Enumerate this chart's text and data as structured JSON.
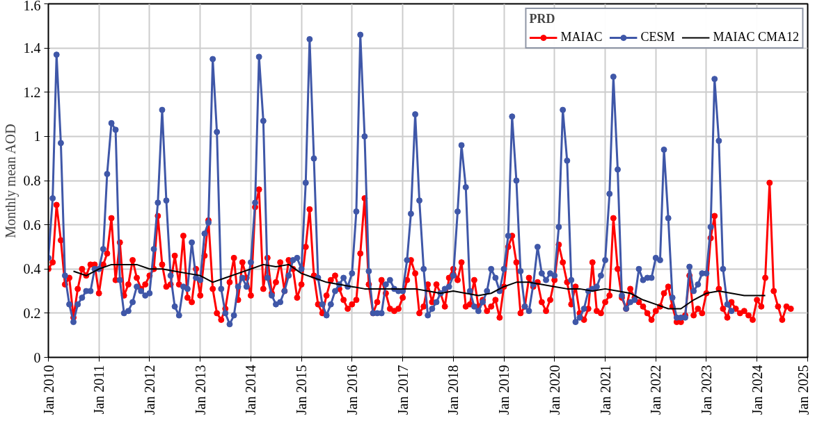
{
  "chart_data": {
    "type": "line",
    "ylabel": "Monthly mean AOD",
    "legend_title": "PRD",
    "legend": "top right",
    "grid": true,
    "line_style": "solid",
    "xlim": [
      "2010-01",
      "2025-01"
    ],
    "xticks": [
      {
        "value": "2010-01",
        "label": "Jan 2010"
      },
      {
        "value": "2011-01",
        "label": "Jan 2011"
      },
      {
        "value": "2012-01",
        "label": "Jan 2012"
      },
      {
        "value": "2013-01",
        "label": "Jan 2013"
      },
      {
        "value": "2014-01",
        "label": "Jan 2014"
      },
      {
        "value": "2015-01",
        "label": "Jan 2015"
      },
      {
        "value": "2016-01",
        "label": "Jan 2016"
      },
      {
        "value": "2017-01",
        "label": "Jan 2017"
      },
      {
        "value": "2018-01",
        "label": "Jan 2018"
      },
      {
        "value": "2019-01",
        "label": "Jan 2019"
      },
      {
        "value": "2020-01",
        "label": "Jan 2020"
      },
      {
        "value": "2021-01",
        "label": "Jan 2021"
      },
      {
        "value": "2022-01",
        "label": "Jan 2022"
      },
      {
        "value": "2023-01",
        "label": "Jan 2023"
      },
      {
        "value": "2024-01",
        "label": "Jan 2024"
      },
      {
        "value": "2025-01",
        "label": "Jan 2025"
      }
    ],
    "ylim": [
      0,
      1.6
    ],
    "yticks": [
      0,
      0.2,
      0.4,
      0.6,
      0.8,
      1,
      1.2,
      1.4,
      1.6
    ],
    "series": [
      {
        "name": "MAIAC",
        "color": "#ff0000",
        "marker": "circle",
        "x": [
          "2010-01",
          "2010-02",
          "2010-03",
          "2010-04",
          "2010-05",
          "2010-06",
          "2010-07",
          "2010-08",
          "2010-09",
          "2010-10",
          "2010-11",
          "2010-12",
          "2011-01",
          "2011-02",
          "2011-03",
          "2011-04",
          "2011-05",
          "2011-06",
          "2011-07",
          "2011-08",
          "2011-09",
          "2011-10",
          "2011-11",
          "2011-12",
          "2012-01",
          "2012-02",
          "2012-03",
          "2012-04",
          "2012-05",
          "2012-06",
          "2012-07",
          "2012-08",
          "2012-09",
          "2012-10",
          "2012-11",
          "2012-12",
          "2013-01",
          "2013-02",
          "2013-03",
          "2013-04",
          "2013-05",
          "2013-06",
          "2013-07",
          "2013-08",
          "2013-09",
          "2013-10",
          "2013-11",
          "2013-12",
          "2014-01",
          "2014-02",
          "2014-03",
          "2014-04",
          "2014-05",
          "2014-06",
          "2014-07",
          "2014-08",
          "2014-09",
          "2014-10",
          "2014-11",
          "2014-12",
          "2015-01",
          "2015-02",
          "2015-03",
          "2015-04",
          "2015-05",
          "2015-06",
          "2015-07",
          "2015-08",
          "2015-09",
          "2015-10",
          "2015-11",
          "2015-12",
          "2016-01",
          "2016-02",
          "2016-03",
          "2016-04",
          "2016-05",
          "2016-06",
          "2016-07",
          "2016-08",
          "2016-09",
          "2016-10",
          "2016-11",
          "2016-12",
          "2017-01",
          "2017-02",
          "2017-03",
          "2017-04",
          "2017-05",
          "2017-06",
          "2017-07",
          "2017-08",
          "2017-09",
          "2017-10",
          "2017-11",
          "2017-12",
          "2018-01",
          "2018-02",
          "2018-03",
          "2018-04",
          "2018-05",
          "2018-06",
          "2018-07",
          "2018-08",
          "2018-09",
          "2018-10",
          "2018-11",
          "2018-12",
          "2019-01",
          "2019-02",
          "2019-03",
          "2019-04",
          "2019-05",
          "2019-06",
          "2019-07",
          "2019-08",
          "2019-09",
          "2019-10",
          "2019-11",
          "2019-12",
          "2020-01",
          "2020-02",
          "2020-03",
          "2020-04",
          "2020-05",
          "2020-06",
          "2020-07",
          "2020-08",
          "2020-09",
          "2020-10",
          "2020-11",
          "2020-12",
          "2021-01",
          "2021-02",
          "2021-03",
          "2021-04",
          "2021-05",
          "2021-06",
          "2021-07",
          "2021-08",
          "2021-09",
          "2021-10",
          "2021-11",
          "2021-12",
          "2022-01",
          "2022-02",
          "2022-03",
          "2022-04",
          "2022-05",
          "2022-06",
          "2022-07",
          "2022-08",
          "2022-09",
          "2022-10",
          "2022-11",
          "2022-12",
          "2023-01",
          "2023-02",
          "2023-03",
          "2023-04",
          "2023-05",
          "2023-06",
          "2023-07",
          "2023-08",
          "2023-09",
          "2023-10",
          "2023-11",
          "2023-12",
          "2024-01",
          "2024-02",
          "2024-03",
          "2024-04",
          "2024-05",
          "2024-06",
          "2024-07",
          "2024-08",
          "2024-09"
        ],
        "values": [
          0.4,
          0.43,
          0.69,
          0.53,
          0.33,
          0.36,
          0.18,
          0.31,
          0.4,
          0.37,
          0.42,
          0.42,
          0.29,
          0.42,
          0.47,
          0.63,
          0.35,
          0.52,
          0.28,
          0.33,
          0.44,
          0.36,
          0.31,
          0.33,
          0.37,
          0.4,
          0.64,
          0.42,
          0.32,
          0.33,
          0.46,
          0.33,
          0.55,
          0.27,
          0.25,
          0.4,
          0.28,
          0.46,
          0.62,
          0.31,
          0.2,
          0.17,
          0.22,
          0.34,
          0.45,
          0.26,
          0.43,
          0.36,
          0.28,
          0.68,
          0.76,
          0.31,
          0.45,
          0.29,
          0.34,
          0.43,
          0.3,
          0.44,
          0.4,
          0.27,
          0.33,
          0.5,
          0.67,
          0.37,
          0.24,
          0.2,
          0.28,
          0.35,
          0.37,
          0.31,
          0.26,
          0.22,
          0.24,
          0.26,
          0.47,
          0.72,
          0.33,
          0.2,
          0.25,
          0.35,
          0.29,
          0.22,
          0.21,
          0.22,
          0.27,
          0.35,
          0.44,
          0.38,
          0.2,
          0.23,
          0.33,
          0.25,
          0.33,
          0.29,
          0.23,
          0.36,
          0.4,
          0.35,
          0.43,
          0.23,
          0.24,
          0.35,
          0.23,
          0.26,
          0.21,
          0.23,
          0.26,
          0.18,
          0.32,
          0.5,
          0.55,
          0.43,
          0.2,
          0.23,
          0.36,
          0.32,
          0.34,
          0.25,
          0.21,
          0.26,
          0.35,
          0.51,
          0.43,
          0.34,
          0.24,
          0.32,
          0.2,
          0.17,
          0.22,
          0.43,
          0.21,
          0.2,
          0.25,
          0.28,
          0.63,
          0.4,
          0.27,
          0.22,
          0.31,
          0.27,
          0.25,
          0.23,
          0.2,
          0.17,
          0.21,
          0.23,
          0.29,
          0.32,
          0.23,
          0.16,
          0.16,
          0.19,
          0.37,
          0.19,
          0.22,
          0.2,
          0.29,
          0.54,
          0.64,
          0.31,
          0.22,
          0.18,
          0.25,
          0.22,
          0.2,
          0.21,
          0.19,
          0.17,
          0.26,
          0.23,
          0.36,
          0.79,
          0.3,
          0.23,
          0.17,
          0.23,
          0.22
        ]
      },
      {
        "name": "CESM",
        "color": "#3f57a8",
        "marker": "circle",
        "x": [
          "2010-01",
          "2010-02",
          "2010-03",
          "2010-04",
          "2010-05",
          "2010-06",
          "2010-07",
          "2010-08",
          "2010-09",
          "2010-10",
          "2010-11",
          "2010-12",
          "2011-01",
          "2011-02",
          "2011-03",
          "2011-04",
          "2011-05",
          "2011-06",
          "2011-07",
          "2011-08",
          "2011-09",
          "2011-10",
          "2011-11",
          "2011-12",
          "2012-01",
          "2012-02",
          "2012-03",
          "2012-04",
          "2012-05",
          "2012-06",
          "2012-07",
          "2012-08",
          "2012-09",
          "2012-10",
          "2012-11",
          "2012-12",
          "2013-01",
          "2013-02",
          "2013-03",
          "2013-04",
          "2013-05",
          "2013-06",
          "2013-07",
          "2013-08",
          "2013-09",
          "2013-10",
          "2013-11",
          "2013-12",
          "2014-01",
          "2014-02",
          "2014-03",
          "2014-04",
          "2014-05",
          "2014-06",
          "2014-07",
          "2014-08",
          "2014-09",
          "2014-10",
          "2014-11",
          "2014-12",
          "2015-01",
          "2015-02",
          "2015-03",
          "2015-04",
          "2015-05",
          "2015-06",
          "2015-07",
          "2015-08",
          "2015-09",
          "2015-10",
          "2015-11",
          "2015-12",
          "2016-01",
          "2016-02",
          "2016-03",
          "2016-04",
          "2016-05",
          "2016-06",
          "2016-07",
          "2016-08",
          "2016-09",
          "2016-10",
          "2016-11",
          "2016-12",
          "2017-01",
          "2017-02",
          "2017-03",
          "2017-04",
          "2017-05",
          "2017-06",
          "2017-07",
          "2017-08",
          "2017-09",
          "2017-10",
          "2017-11",
          "2017-12",
          "2018-01",
          "2018-02",
          "2018-03",
          "2018-04",
          "2018-05",
          "2018-06",
          "2018-07",
          "2018-08",
          "2018-09",
          "2018-10",
          "2018-11",
          "2018-12",
          "2019-01",
          "2019-02",
          "2019-03",
          "2019-04",
          "2019-05",
          "2019-06",
          "2019-07",
          "2019-08",
          "2019-09",
          "2019-10",
          "2019-11",
          "2019-12",
          "2020-01",
          "2020-02",
          "2020-03",
          "2020-04",
          "2020-05",
          "2020-06",
          "2020-07",
          "2020-08",
          "2020-09",
          "2020-10",
          "2020-11",
          "2020-12",
          "2021-01",
          "2021-02",
          "2021-03",
          "2021-04",
          "2021-05",
          "2021-06",
          "2021-07",
          "2021-08",
          "2021-09",
          "2021-10",
          "2021-11",
          "2021-12",
          "2022-01",
          "2022-02",
          "2022-03",
          "2022-04",
          "2022-05",
          "2022-06",
          "2022-07",
          "2022-08",
          "2022-09",
          "2022-10",
          "2022-11",
          "2022-12",
          "2023-01",
          "2023-02",
          "2023-03",
          "2023-04",
          "2023-05",
          "2023-06",
          "2023-07"
        ],
        "values": [
          0.45,
          0.72,
          1.37,
          0.97,
          0.37,
          0.24,
          0.16,
          0.24,
          0.27,
          0.3,
          0.3,
          0.4,
          0.4,
          0.49,
          0.83,
          1.06,
          1.03,
          0.35,
          0.2,
          0.21,
          0.25,
          0.32,
          0.3,
          0.28,
          0.29,
          0.49,
          0.7,
          1.12,
          0.71,
          0.37,
          0.23,
          0.19,
          0.32,
          0.31,
          0.52,
          0.36,
          0.35,
          0.56,
          0.61,
          1.35,
          1.02,
          0.31,
          0.2,
          0.15,
          0.19,
          0.32,
          0.36,
          0.32,
          0.43,
          0.7,
          1.36,
          1.07,
          0.36,
          0.28,
          0.24,
          0.25,
          0.3,
          0.37,
          0.44,
          0.45,
          0.4,
          0.79,
          1.44,
          0.9,
          0.36,
          0.24,
          0.19,
          0.24,
          0.3,
          0.33,
          0.36,
          0.32,
          0.38,
          0.66,
          1.46,
          1.0,
          0.39,
          0.2,
          0.2,
          0.2,
          0.33,
          0.35,
          0.31,
          0.3,
          0.3,
          0.44,
          0.65,
          1.1,
          0.71,
          0.4,
          0.19,
          0.22,
          0.25,
          0.29,
          0.31,
          0.32,
          0.37,
          0.66,
          0.96,
          0.77,
          0.3,
          0.23,
          0.21,
          0.25,
          0.3,
          0.4,
          0.36,
          0.3,
          0.4,
          0.55,
          1.09,
          0.8,
          0.39,
          0.23,
          0.21,
          0.33,
          0.5,
          0.38,
          0.35,
          0.38,
          0.37,
          0.59,
          1.12,
          0.89,
          0.35,
          0.16,
          0.18,
          0.22,
          0.3,
          0.31,
          0.32,
          0.37,
          0.44,
          0.74,
          1.27,
          0.85,
          0.28,
          0.22,
          0.25,
          0.26,
          0.4,
          0.35,
          0.36,
          0.36,
          0.45,
          0.44,
          0.94,
          0.63,
          0.27,
          0.18,
          0.18,
          0.18,
          0.41,
          0.3,
          0.33,
          0.38,
          0.38,
          0.59,
          1.26,
          0.98,
          0.4,
          0.24,
          0.21
        ]
      },
      {
        "name": "MAIAC CMA12",
        "color": "#000000",
        "marker": "none",
        "x": [
          "2010-07",
          "2010-10",
          "2011-01",
          "2011-04",
          "2011-07",
          "2011-10",
          "2012-01",
          "2012-04",
          "2012-07",
          "2012-10",
          "2013-01",
          "2013-04",
          "2013-07",
          "2013-10",
          "2014-01",
          "2014-04",
          "2014-07",
          "2014-10",
          "2015-01",
          "2015-04",
          "2015-07",
          "2015-10",
          "2016-01",
          "2016-04",
          "2016-07",
          "2016-10",
          "2017-01",
          "2017-04",
          "2017-07",
          "2017-10",
          "2018-01",
          "2018-04",
          "2018-07",
          "2018-10",
          "2019-01",
          "2019-04",
          "2019-07",
          "2019-10",
          "2020-01",
          "2020-04",
          "2020-07",
          "2020-10",
          "2021-01",
          "2021-04",
          "2021-07",
          "2021-10",
          "2022-01",
          "2022-04",
          "2022-07",
          "2022-10",
          "2023-01",
          "2023-04",
          "2023-07",
          "2023-10",
          "2024-01",
          "2024-03"
        ],
        "values": [
          0.39,
          0.37,
          0.4,
          0.42,
          0.42,
          0.42,
          0.4,
          0.4,
          0.39,
          0.38,
          0.37,
          0.34,
          0.36,
          0.38,
          0.4,
          0.42,
          0.41,
          0.42,
          0.38,
          0.36,
          0.34,
          0.33,
          0.32,
          0.31,
          0.31,
          0.31,
          0.31,
          0.31,
          0.3,
          0.29,
          0.3,
          0.29,
          0.28,
          0.29,
          0.32,
          0.34,
          0.34,
          0.33,
          0.32,
          0.31,
          0.31,
          0.3,
          0.31,
          0.3,
          0.29,
          0.26,
          0.24,
          0.22,
          0.22,
          0.26,
          0.29,
          0.3,
          0.29,
          0.28,
          0.28,
          0.28
        ]
      }
    ]
  }
}
